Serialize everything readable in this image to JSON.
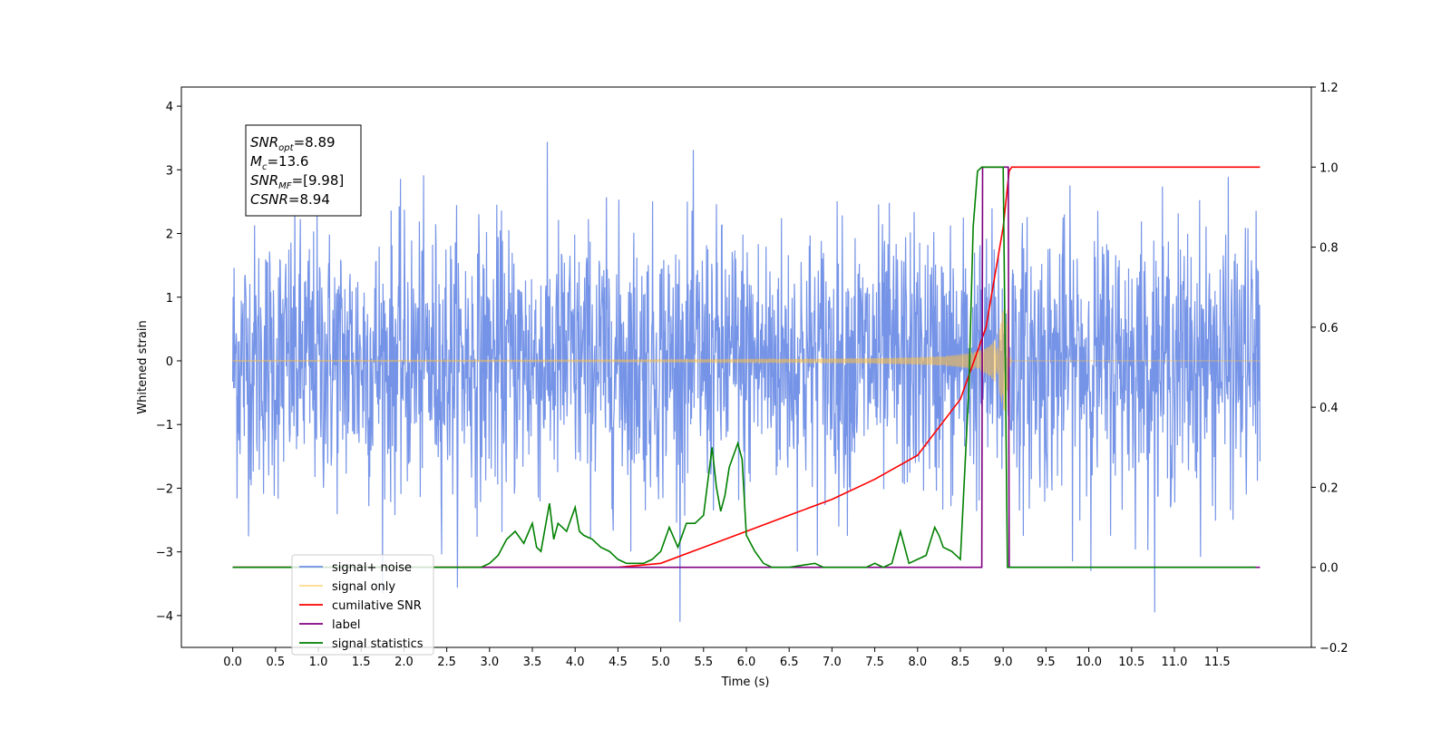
{
  "chart_data": {
    "type": "line",
    "xlabel": "Time (s)",
    "ylabel": "Whitened strain",
    "xlim": [
      -0.6,
      12.6
    ],
    "ylim": [
      -4.5,
      4.3
    ],
    "y2lim": [
      -0.2,
      1.2
    ],
    "grid": false,
    "legend_position": "bottom-left",
    "x_ticks": [
      "0.0",
      "0.5",
      "1.0",
      "1.5",
      "2.0",
      "2.5",
      "3.0",
      "3.5",
      "4.0",
      "4.5",
      "5.0",
      "5.5",
      "6.0",
      "6.5",
      "7.0",
      "7.5",
      "8.0",
      "8.5",
      "9.0",
      "9.5",
      "10.0",
      "10.5",
      "11.0",
      "11.5"
    ],
    "y_ticks": [
      "4",
      "3",
      "2",
      "1",
      "0",
      "−1",
      "−2",
      "−3",
      "−4"
    ],
    "y2_ticks": [
      "1.2",
      "1.0",
      "0.8",
      "0.6",
      "0.4",
      "0.2",
      "0.0",
      "−0.2"
    ],
    "annotation": [
      {
        "name": "SNR",
        "sub": "opt",
        "value": "=8.89"
      },
      {
        "name": "M",
        "sub": "c",
        "value": "=13.6"
      },
      {
        "name": "SNR",
        "sub": "MF",
        "value": "=[9.98]"
      },
      {
        "name": "CSNR",
        "sub": "",
        "value": "=8.94"
      }
    ],
    "series": [
      {
        "name": "signal+ noise",
        "color": "#6f8ee6",
        "axis": "left",
        "kind": "noise",
        "x_range": [
          0,
          12
        ],
        "amplitude_std": 1.05
      },
      {
        "name": "signal only",
        "color": "#ffbf40",
        "axis": "left",
        "kind": "chirp",
        "merger_time": 9.05,
        "peak_amplitude": 0.8
      },
      {
        "name": "cumilative SNR",
        "color": "#ff0000",
        "axis": "right",
        "x": [
          0,
          4.5,
          5.0,
          5.5,
          6.0,
          6.5,
          7.0,
          7.5,
          8.0,
          8.5,
          8.8,
          9.0,
          9.07,
          9.1,
          12.0
        ],
        "values": [
          0,
          0,
          0.01,
          0.05,
          0.09,
          0.13,
          0.17,
          0.22,
          0.28,
          0.42,
          0.6,
          0.85,
          0.99,
          1.0,
          1.0
        ]
      },
      {
        "name": "label",
        "color": "#800080",
        "axis": "right",
        "x": [
          0,
          8.75,
          8.76,
          9.06,
          9.07,
          12.0
        ],
        "values": [
          0,
          0,
          1,
          1,
          0,
          0
        ]
      },
      {
        "name": "signal statistics",
        "color": "#008000",
        "axis": "right",
        "x": [
          0,
          2.9,
          3.0,
          3.1,
          3.2,
          3.3,
          3.4,
          3.5,
          3.55,
          3.6,
          3.7,
          3.75,
          3.8,
          3.9,
          4.0,
          4.05,
          4.1,
          4.2,
          4.3,
          4.4,
          4.5,
          4.6,
          4.7,
          4.8,
          4.9,
          5.0,
          5.1,
          5.2,
          5.3,
          5.4,
          5.5,
          5.6,
          5.65,
          5.7,
          5.75,
          5.8,
          5.9,
          5.95,
          6.0,
          6.1,
          6.2,
          6.3,
          6.5,
          6.8,
          6.9,
          7.0,
          7.2,
          7.4,
          7.5,
          7.6,
          7.7,
          7.8,
          7.85,
          7.9,
          8.0,
          8.1,
          8.2,
          8.25,
          8.3,
          8.4,
          8.5,
          8.6,
          8.65,
          8.7,
          8.75,
          8.8,
          8.9,
          9.0,
          9.05,
          9.1,
          11.95
        ],
        "values": [
          0,
          0,
          0.01,
          0.03,
          0.07,
          0.09,
          0.06,
          0.11,
          0.05,
          0.04,
          0.16,
          0.07,
          0.11,
          0.09,
          0.15,
          0.09,
          0.08,
          0.07,
          0.05,
          0.04,
          0.02,
          0.01,
          0.01,
          0.01,
          0.02,
          0.04,
          0.1,
          0.05,
          0.11,
          0.11,
          0.13,
          0.3,
          0.2,
          0.14,
          0.18,
          0.25,
          0.31,
          0.27,
          0.08,
          0.04,
          0.01,
          0,
          0,
          0.01,
          0,
          0,
          0,
          0,
          0.01,
          0,
          0.01,
          0.09,
          0.05,
          0.01,
          0.02,
          0.03,
          0.1,
          0.08,
          0.05,
          0.04,
          0.02,
          0.45,
          0.85,
          0.99,
          1.0,
          1.0,
          1.0,
          1.0,
          0,
          0,
          0
        ]
      }
    ]
  }
}
